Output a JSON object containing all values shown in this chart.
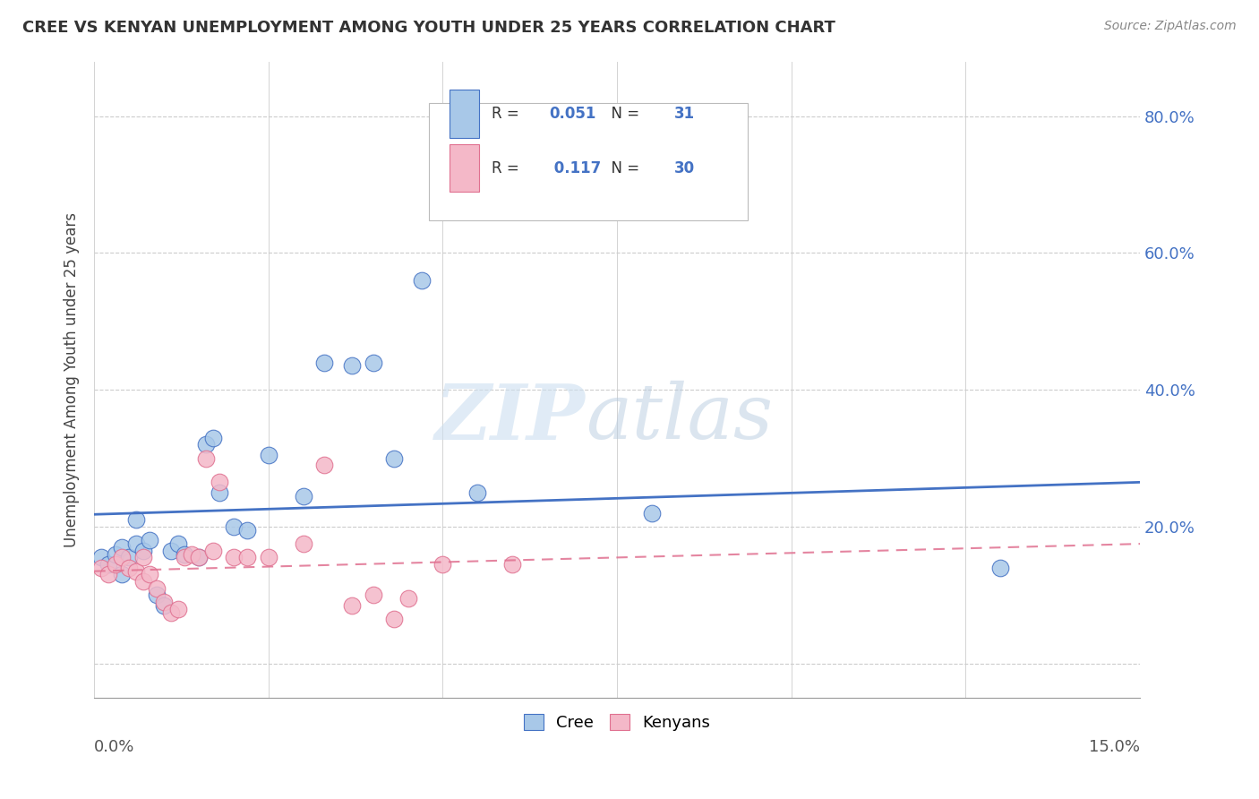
{
  "title": "CREE VS KENYAN UNEMPLOYMENT AMONG YOUTH UNDER 25 YEARS CORRELATION CHART",
  "source": "Source: ZipAtlas.com",
  "ylabel": "Unemployment Among Youth under 25 years",
  "yticks": [
    0.0,
    0.2,
    0.4,
    0.6,
    0.8
  ],
  "ytick_labels": [
    "",
    "20.0%",
    "40.0%",
    "60.0%",
    "80.0%"
  ],
  "xlim": [
    0.0,
    0.15
  ],
  "ylim": [
    -0.05,
    0.88
  ],
  "cree_R": "0.051",
  "cree_N": "31",
  "kenyan_R": "0.117",
  "kenyan_N": "30",
  "cree_color": "#a8c8e8",
  "kenyan_color": "#f4b8c8",
  "cree_line_color": "#4472c4",
  "kenyan_line_color": "#e07090",
  "watermark_zip": "ZIP",
  "watermark_atlas": "atlas",
  "legend_label_cree": "Cree",
  "legend_label_kenyan": "Kenyans",
  "grid_color": "#cccccc",
  "background_color": "#ffffff",
  "cree_x": [
    0.001,
    0.002,
    0.003,
    0.004,
    0.004,
    0.005,
    0.006,
    0.006,
    0.007,
    0.008,
    0.009,
    0.01,
    0.011,
    0.012,
    0.013,
    0.015,
    0.016,
    0.017,
    0.018,
    0.02,
    0.022,
    0.025,
    0.03,
    0.033,
    0.037,
    0.04,
    0.043,
    0.047,
    0.055,
    0.08,
    0.13
  ],
  "cree_y": [
    0.155,
    0.145,
    0.16,
    0.13,
    0.17,
    0.155,
    0.175,
    0.21,
    0.165,
    0.18,
    0.1,
    0.085,
    0.165,
    0.175,
    0.16,
    0.155,
    0.32,
    0.33,
    0.25,
    0.2,
    0.195,
    0.305,
    0.245,
    0.44,
    0.435,
    0.44,
    0.3,
    0.56,
    0.25,
    0.22,
    0.14
  ],
  "kenyan_x": [
    0.001,
    0.002,
    0.003,
    0.004,
    0.005,
    0.006,
    0.007,
    0.007,
    0.008,
    0.009,
    0.01,
    0.011,
    0.012,
    0.013,
    0.014,
    0.015,
    0.016,
    0.017,
    0.018,
    0.02,
    0.022,
    0.025,
    0.03,
    0.033,
    0.037,
    0.04,
    0.043,
    0.045,
    0.05,
    0.06
  ],
  "kenyan_y": [
    0.14,
    0.13,
    0.145,
    0.155,
    0.14,
    0.135,
    0.12,
    0.155,
    0.13,
    0.11,
    0.09,
    0.075,
    0.08,
    0.155,
    0.16,
    0.155,
    0.3,
    0.165,
    0.265,
    0.155,
    0.155,
    0.155,
    0.175,
    0.29,
    0.085,
    0.1,
    0.065,
    0.095,
    0.145,
    0.145
  ],
  "cree_line_x": [
    0.0,
    0.15
  ],
  "cree_line_y": [
    0.218,
    0.265
  ],
  "kenyan_line_x": [
    0.0,
    0.15
  ],
  "kenyan_line_y": [
    0.135,
    0.175
  ]
}
